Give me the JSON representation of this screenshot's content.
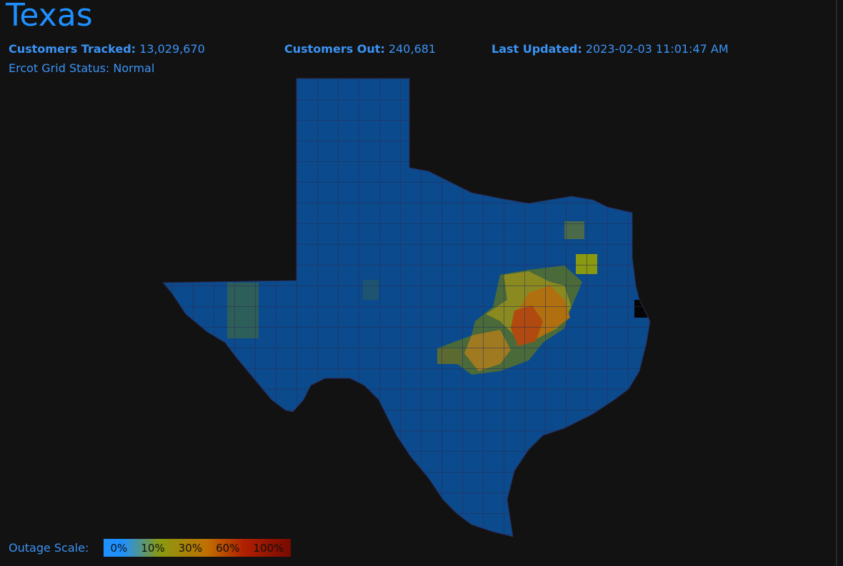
{
  "header": {
    "title": "Texas"
  },
  "stats": [
    {
      "label": "Customers Tracked:",
      "value": "13,029,670"
    },
    {
      "label": "Customers Out:",
      "value": "240,681"
    },
    {
      "label": "Last Updated:",
      "value": "2023-02-03 11:01:47 AM"
    }
  ],
  "grid_status": "Ercot Grid Status: Normal",
  "legend": {
    "label": "Outage Scale:",
    "steps": [
      "0%",
      "10%",
      "30%",
      "60%",
      "100%"
    ]
  }
}
